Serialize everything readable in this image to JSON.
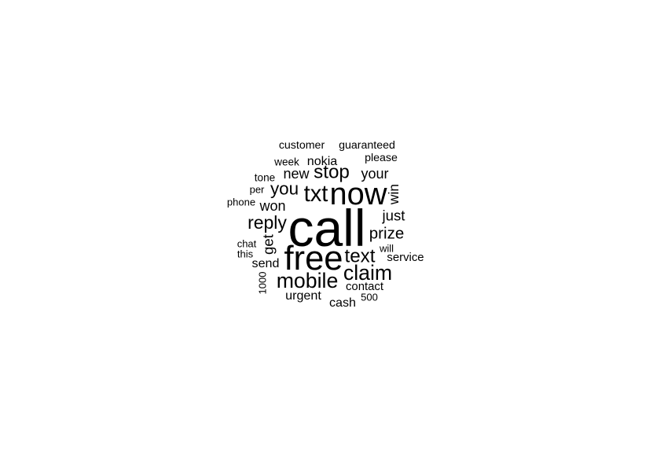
{
  "chart_data": {
    "type": "wordcloud",
    "words": [
      {
        "text": "call",
        "weight": 1.0,
        "rotated": false
      },
      {
        "text": "now",
        "weight": 0.58,
        "rotated": false
      },
      {
        "text": "free",
        "weight": 0.64,
        "rotated": false
      },
      {
        "text": "txt",
        "weight": 0.41,
        "rotated": false
      },
      {
        "text": "mobile",
        "weight": 0.37,
        "rotated": false
      },
      {
        "text": "claim",
        "weight": 0.37,
        "rotated": false
      },
      {
        "text": "stop",
        "weight": 0.33,
        "rotated": false
      },
      {
        "text": "text",
        "weight": 0.33,
        "rotated": false
      },
      {
        "text": "reply",
        "weight": 0.31,
        "rotated": false
      },
      {
        "text": "you",
        "weight": 0.3,
        "rotated": false
      },
      {
        "text": "prize",
        "weight": 0.27,
        "rotated": false
      },
      {
        "text": "just",
        "weight": 0.24,
        "rotated": false
      },
      {
        "text": "get",
        "weight": 0.24,
        "rotated": true
      },
      {
        "text": "your",
        "weight": 0.23,
        "rotated": false
      },
      {
        "text": "new",
        "weight": 0.23,
        "rotated": false
      },
      {
        "text": "won",
        "weight": 0.23,
        "rotated": false
      },
      {
        "text": "win",
        "weight": 0.22,
        "rotated": true
      },
      {
        "text": "nokia",
        "weight": 0.2,
        "rotated": false
      },
      {
        "text": "send",
        "weight": 0.2,
        "rotated": false
      },
      {
        "text": "urgent",
        "weight": 0.2,
        "rotated": false
      },
      {
        "text": "cash",
        "weight": 0.2,
        "rotated": false
      },
      {
        "text": "service",
        "weight": 0.18,
        "rotated": false
      },
      {
        "text": "contact",
        "weight": 0.18,
        "rotated": false
      },
      {
        "text": "please",
        "weight": 0.17,
        "rotated": false
      },
      {
        "text": "customer",
        "weight": 0.17,
        "rotated": false
      },
      {
        "text": "guaranteed",
        "weight": 0.17,
        "rotated": false
      },
      {
        "text": "week",
        "weight": 0.16,
        "rotated": false
      },
      {
        "text": "tone",
        "weight": 0.16,
        "rotated": false
      },
      {
        "text": "per",
        "weight": 0.15,
        "rotated": false
      },
      {
        "text": "phone",
        "weight": 0.15,
        "rotated": false
      },
      {
        "text": "chat",
        "weight": 0.15,
        "rotated": false
      },
      {
        "text": "this",
        "weight": 0.15,
        "rotated": false
      },
      {
        "text": "will",
        "weight": 0.15,
        "rotated": false
      },
      {
        "text": "500",
        "weight": 0.15,
        "rotated": false
      },
      {
        "text": "1000",
        "weight": 0.15,
        "rotated": true
      }
    ]
  }
}
